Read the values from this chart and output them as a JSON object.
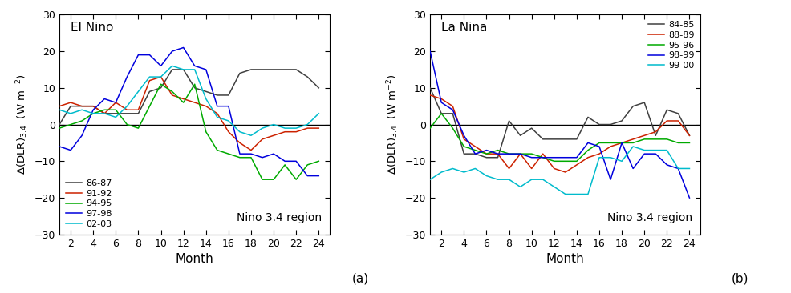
{
  "panel_a": {
    "title": "El Nino",
    "annotation": "Nino 3.4 region",
    "xlabel": "Month",
    "ylim": [
      -30,
      30
    ],
    "xlim": [
      1,
      25
    ],
    "xticks": [
      2,
      4,
      6,
      8,
      10,
      12,
      14,
      16,
      18,
      20,
      22,
      24
    ],
    "yticks": [
      -30,
      -20,
      -10,
      0,
      10,
      20,
      30
    ],
    "legend_loc": "lower left",
    "series": {
      "86-87": {
        "color": "#404040",
        "data": [
          0,
          5,
          5,
          5,
          3,
          3,
          3,
          3,
          9,
          10,
          15,
          15,
          10,
          9,
          8,
          8,
          14,
          15,
          15,
          15,
          15,
          15,
          13,
          10
        ]
      },
      "91-92": {
        "color": "#cc2200",
        "data": [
          5,
          6,
          5,
          5,
          3,
          6,
          4,
          4,
          12,
          13,
          8,
          7,
          6,
          5,
          3,
          -2,
          -5,
          -7,
          -4,
          -3,
          -2,
          -2,
          -1,
          -1
        ]
      },
      "94-95": {
        "color": "#00aa00",
        "data": [
          -1,
          0,
          1,
          3,
          4,
          4,
          0,
          -1,
          5,
          11,
          9,
          6,
          11,
          -2,
          -7,
          -8,
          -9,
          -9,
          -15,
          -15,
          -11,
          -15,
          -11,
          -10
        ]
      },
      "97-98": {
        "color": "#0000dd",
        "data": [
          -6,
          -7,
          -3,
          4,
          7,
          6,
          13,
          19,
          19,
          16,
          20,
          21,
          16,
          15,
          5,
          5,
          -8,
          -8,
          -9,
          -8,
          -10,
          -10,
          -14,
          -14
        ]
      },
      "02-03": {
        "color": "#00bbcc",
        "data": [
          4,
          3,
          4,
          3,
          3,
          2,
          5,
          9,
          13,
          13,
          16,
          15,
          15,
          7,
          2,
          1,
          -2,
          -3,
          -1,
          0,
          -1,
          -1,
          0,
          3
        ]
      }
    }
  },
  "panel_b": {
    "title": "La Nina",
    "annotation": "Nino 3.4 region",
    "xlabel": "Month",
    "ylim": [
      -30,
      30
    ],
    "xlim": [
      1,
      25
    ],
    "xticks": [
      2,
      4,
      6,
      8,
      10,
      12,
      14,
      16,
      18,
      20,
      22,
      24
    ],
    "yticks": [
      -30,
      -20,
      -10,
      0,
      10,
      20,
      30
    ],
    "legend_loc": "upper right",
    "series": {
      "84-85": {
        "color": "#404040",
        "data": [
          10,
          3,
          3,
          -8,
          -8,
          -9,
          -9,
          1,
          -3,
          -1,
          -4,
          -4,
          -4,
          -4,
          2,
          0,
          0,
          1,
          5,
          6,
          -3,
          4,
          3,
          -3
        ]
      },
      "88-89": {
        "color": "#cc2200",
        "data": [
          8,
          7,
          5,
          -4,
          -6,
          -8,
          -8,
          -12,
          -8,
          -12,
          -8,
          -12,
          -13,
          -11,
          -9,
          -8,
          -6,
          -5,
          -4,
          -3,
          -2,
          1,
          1,
          -3
        ]
      },
      "95-96": {
        "color": "#00aa00",
        "data": [
          -1,
          3,
          -1,
          -6,
          -7,
          -8,
          -7,
          -8,
          -8,
          -8,
          -9,
          -10,
          -10,
          -10,
          -7,
          -5,
          -5,
          -5,
          -5,
          -4,
          -4,
          -4,
          -5,
          -5
        ]
      },
      "98-99": {
        "color": "#0000dd",
        "data": [
          20,
          6,
          4,
          -3,
          -8,
          -7,
          -8,
          -8,
          -8,
          -9,
          -9,
          -9,
          -9,
          -9,
          -5,
          -6,
          -15,
          -5,
          -12,
          -8,
          -8,
          -11,
          -12,
          -20
        ]
      },
      "99-00": {
        "color": "#00bbcc",
        "data": [
          -15,
          -13,
          -12,
          -13,
          -12,
          -14,
          -15,
          -15,
          -17,
          -15,
          -15,
          -17,
          -19,
          -19,
          -19,
          -9,
          -9,
          -10,
          -6,
          -7,
          -7,
          -7,
          -12,
          -12
        ]
      }
    }
  },
  "fig_label_a": "(a)",
  "fig_label_b": "(b)",
  "background_color": "#ffffff",
  "linewidth": 1.1
}
